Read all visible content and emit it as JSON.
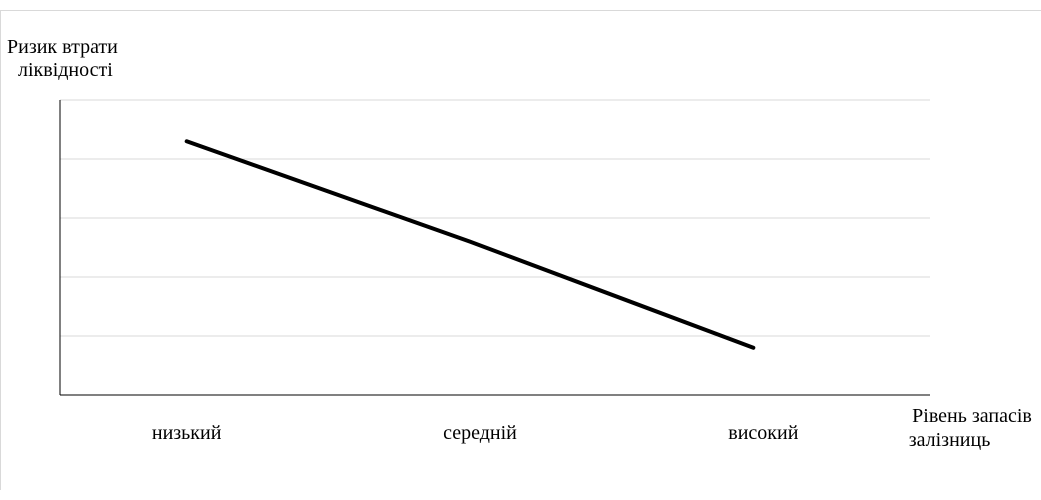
{
  "chart_data": {
    "type": "line",
    "categories": [
      "низький",
      "середній",
      "високий"
    ],
    "series": [
      {
        "values": [
          4.3,
          2.6,
          0.8
        ]
      }
    ],
    "ylabel_lines": [
      "Ризик втрати",
      "ліквідності"
    ],
    "xlabel_lines": [
      "Рівень запасів",
      "залізниць"
    ],
    "ylim": [
      0,
      5
    ],
    "gridlines": 5,
    "grid": true,
    "legend": "none",
    "line_color": "#000000",
    "grid_color": "#d9d9d9"
  }
}
